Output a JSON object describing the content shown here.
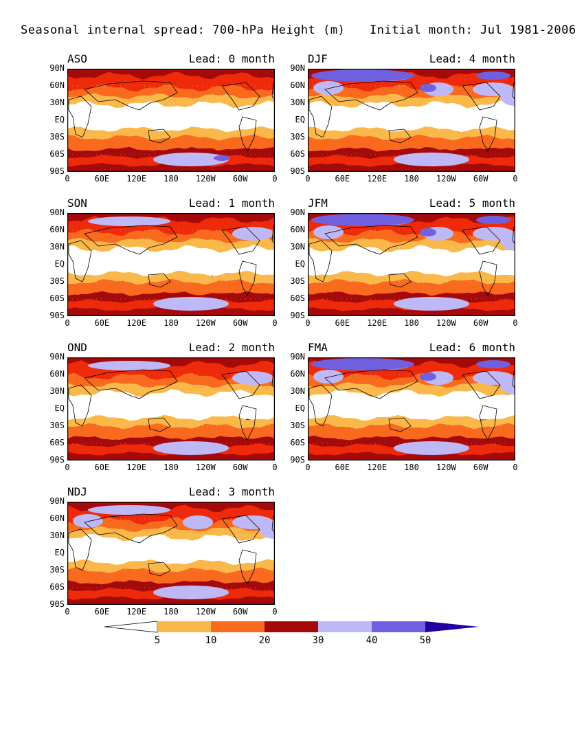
{
  "title": "Seasonal internal spread: 700-hPa Height (m)",
  "subtitle": "Initial month: Jul 1981-2006",
  "lat_labels": [
    "90N",
    "60N",
    "30N",
    "EQ",
    "30S",
    "60S",
    "90S"
  ],
  "lon_labels": [
    "0",
    "60E",
    "120E",
    "180",
    "120W",
    "60W",
    "0"
  ],
  "panels": [
    {
      "season": "ASO",
      "lead": "Lead: 0 month",
      "col": 0,
      "row": 0,
      "level": 0
    },
    {
      "season": "DJF",
      "lead": "Lead: 4 month",
      "col": 1,
      "row": 0,
      "level": 4
    },
    {
      "season": "SON",
      "lead": "Lead: 1 month",
      "col": 0,
      "row": 1,
      "level": 1
    },
    {
      "season": "JFM",
      "lead": "Lead: 5 month",
      "col": 1,
      "row": 1,
      "level": 5
    },
    {
      "season": "OND",
      "lead": "Lead: 2 month",
      "col": 0,
      "row": 2,
      "level": 2
    },
    {
      "season": "FMA",
      "lead": "Lead: 6 month",
      "col": 1,
      "row": 2,
      "level": 6
    },
    {
      "season": "NDJ",
      "lead": "Lead: 3 month",
      "col": 0,
      "row": 3,
      "level": 3
    }
  ],
  "colorbar": {
    "ticks": [
      "5",
      "10",
      "20",
      "30",
      "40",
      "50"
    ],
    "colors": [
      "#ffffff",
      "#fbb84a",
      "#f96a1e",
      "#ee2a0a",
      "#a50a0a",
      "#bfb8f7",
      "#7060e0",
      "#2000a0"
    ]
  }
}
